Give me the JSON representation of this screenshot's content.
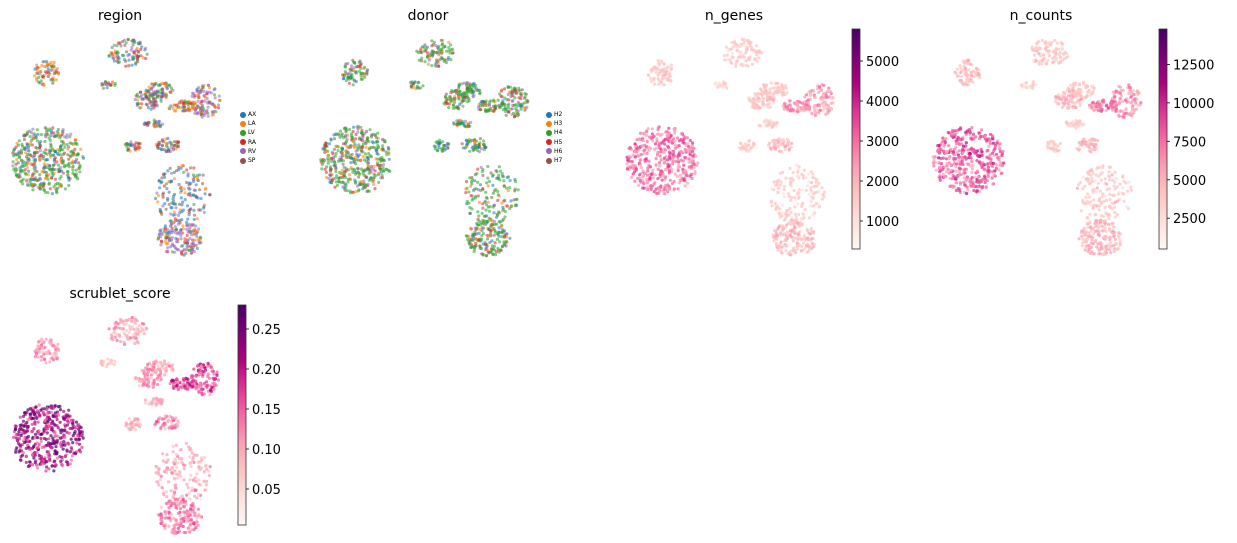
{
  "chart_data": [
    {
      "type": "scatter",
      "title": "region",
      "legend": {
        "placement": "right",
        "entries": [
          {
            "label": "AX",
            "color": "#1f77b4"
          },
          {
            "label": "LA",
            "color": "#ff7f0e"
          },
          {
            "label": "LV",
            "color": "#2ca02c"
          },
          {
            "label": "RA",
            "color": "#d62728"
          },
          {
            "label": "RV",
            "color": "#9467bd"
          },
          {
            "label": "SP",
            "color": "#8c564b"
          }
        ]
      }
    },
    {
      "type": "scatter",
      "title": "donor",
      "legend": {
        "placement": "right",
        "entries": [
          {
            "label": "H2",
            "color": "#1f77b4"
          },
          {
            "label": "H3",
            "color": "#ff7f0e"
          },
          {
            "label": "H4",
            "color": "#2ca02c"
          },
          {
            "label": "H5",
            "color": "#d62728"
          },
          {
            "label": "H6",
            "color": "#9467bd"
          },
          {
            "label": "H7",
            "color": "#8c564b"
          }
        ]
      }
    },
    {
      "type": "scatter",
      "title": "n_genes",
      "colorbar": {
        "min": 300,
        "max": 5800,
        "ticks": [
          1000,
          2000,
          3000,
          4000,
          5000
        ],
        "tick_labels": [
          "1000",
          "2000",
          "3000",
          "4000",
          "5000"
        ],
        "colormap": "RdPu"
      }
    },
    {
      "type": "scatter",
      "title": "n_counts",
      "colorbar": {
        "min": 500,
        "max": 14800,
        "ticks": [
          2500,
          5000,
          7500,
          10000,
          12500
        ],
        "tick_labels": [
          "2500",
          "5000",
          "7500",
          "10000",
          "12500"
        ],
        "colormap": "RdPu"
      }
    },
    {
      "type": "scatter",
      "title": "scrublet_score",
      "colorbar": {
        "min": 0.005,
        "max": 0.28,
        "ticks": [
          0.05,
          0.1,
          0.15,
          0.2,
          0.25
        ],
        "tick_labels": [
          "0.05",
          "0.10",
          "0.15",
          "0.20",
          "0.25"
        ],
        "colormap": "RdPu"
      }
    }
  ]
}
